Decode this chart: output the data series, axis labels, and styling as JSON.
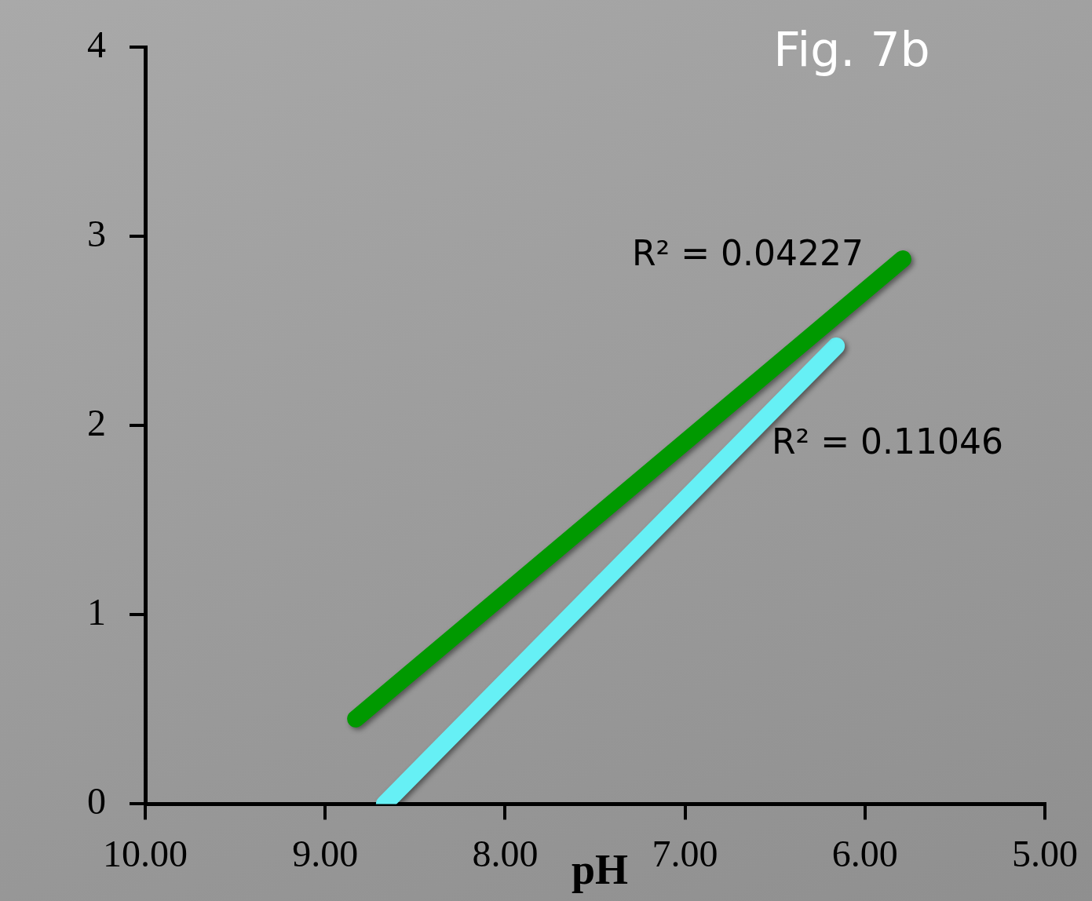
{
  "chart_data": {
    "type": "line",
    "title": "Fig. 7b",
    "xlabel": "pH",
    "xlim": [
      10,
      5
    ],
    "xticks": [
      {
        "value": 10,
        "label": "10.00"
      },
      {
        "value": 9,
        "label": "9.00"
      },
      {
        "value": 8,
        "label": "8.00"
      },
      {
        "value": 7,
        "label": "7.00"
      },
      {
        "value": 6,
        "label": "6.00"
      },
      {
        "value": 5,
        "label": "5.00"
      }
    ],
    "ylim": [
      0,
      4
    ],
    "yticks": [
      0,
      1,
      2,
      3,
      4
    ],
    "grid": false,
    "legend": false,
    "marker": "none",
    "line_style": "solid",
    "series": [
      {
        "color": "#009900",
        "x": [
          8.83,
          5.79
        ],
        "values": [
          0.45,
          2.88
        ]
      },
      {
        "color": "#66f0f5",
        "x": [
          8.67,
          6.16
        ],
        "values": [
          0,
          2.42
        ]
      }
    ],
    "annotations": [
      "R² = 0.04227",
      "R² = 0.11046"
    ]
  }
}
